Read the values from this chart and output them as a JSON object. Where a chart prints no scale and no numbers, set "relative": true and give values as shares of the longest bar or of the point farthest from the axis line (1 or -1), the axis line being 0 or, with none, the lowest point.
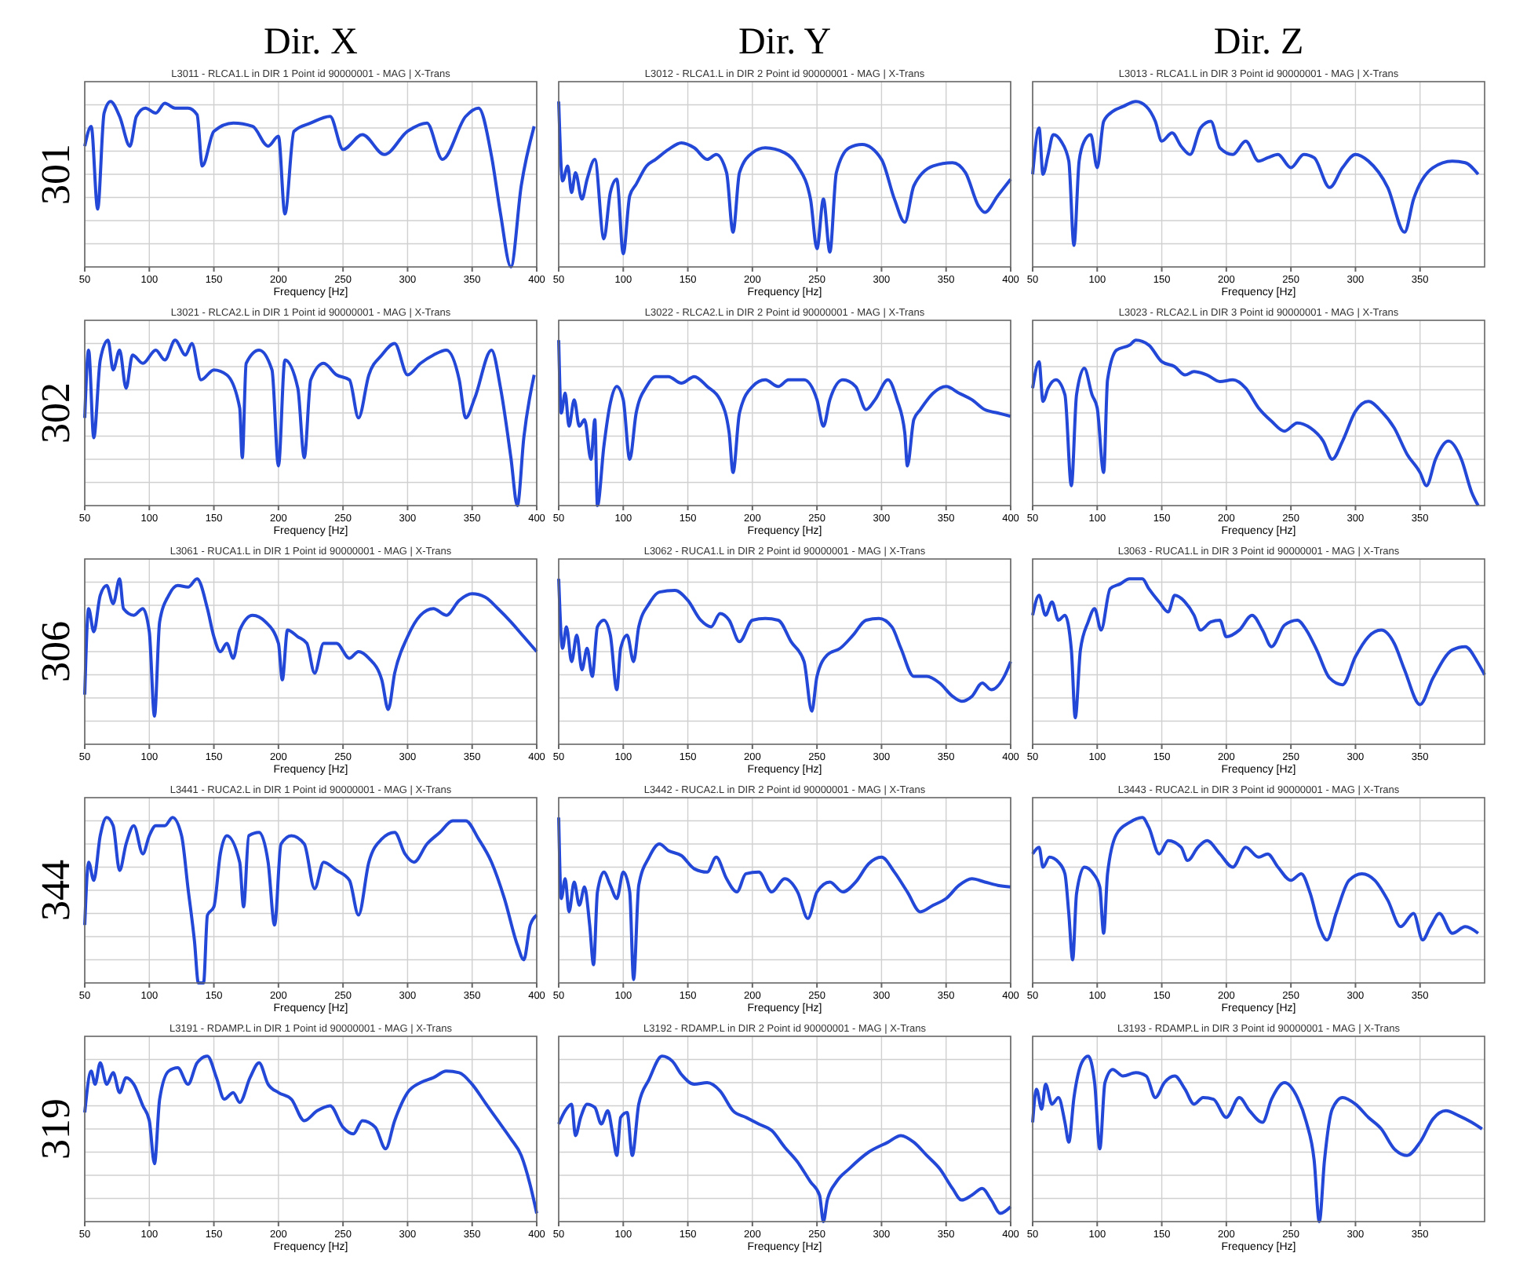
{
  "chart_data": [
    {
      "type": "line",
      "title": "L3011 - RLCA1.L in DIR 1 Point id 90000001 - MAG | X-Trans",
      "xlabel": "Frequency [Hz]",
      "annotations": [
        "Dir. X",
        "301"
      ],
      "relative": true,
      "grid": true,
      "marker": "none",
      "line_style": "solid",
      "xlim": [
        50,
        400
      ],
      "xticks": [
        50,
        100,
        150,
        200,
        250,
        300,
        350,
        400
      ],
      "color": "#2347d6",
      "x": [
        50,
        55,
        60,
        65,
        70,
        77,
        85,
        90,
        97,
        105,
        112,
        120,
        130,
        137,
        141,
        150,
        165,
        180,
        192,
        200,
        205,
        212,
        225,
        240,
        250,
        265,
        282,
        300,
        315,
        327,
        345,
        355,
        365,
        372,
        380,
        388,
        398
      ],
      "values": [
        0.73,
        0.85,
        0.35,
        0.93,
        1,
        0.91,
        0.73,
        0.91,
        0.96,
        0.93,
        0.99,
        0.96,
        0.96,
        0.92,
        0.61,
        0.82,
        0.87,
        0.85,
        0.73,
        0.79,
        0.32,
        0.82,
        0.87,
        0.91,
        0.71,
        0.8,
        0.68,
        0.82,
        0.87,
        0.65,
        0.91,
        0.96,
        0.67,
        0.32,
        0,
        0.49,
        0.85
      ]
    },
    {
      "type": "line",
      "title": "L3012 - RLCA1.L in DIR 2 Point id 90000001 - MAG | X-Trans",
      "xlabel": "Frequency [Hz]",
      "annotations": [
        "Dir. Y"
      ],
      "relative": true,
      "grid": true,
      "marker": "none",
      "line_style": "solid",
      "xlim": [
        50,
        400
      ],
      "xticks": [
        50,
        100,
        150,
        200,
        250,
        300,
        350,
        400
      ],
      "color": "#2347d6",
      "x": [
        50,
        53,
        57,
        60,
        63,
        68,
        72,
        78,
        85,
        90,
        95,
        100,
        105,
        110,
        118,
        125,
        135,
        145,
        155,
        165,
        172,
        180,
        185,
        190,
        200,
        210,
        225,
        235,
        245,
        250,
        255,
        260,
        265,
        275,
        285,
        300,
        310,
        318,
        325,
        340,
        355,
        365,
        375,
        380,
        390,
        400
      ],
      "values": [
        1,
        0.52,
        0.61,
        0.45,
        0.57,
        0.41,
        0.53,
        0.65,
        0.17,
        0.45,
        0.53,
        0.08,
        0.43,
        0.5,
        0.61,
        0.65,
        0.71,
        0.75,
        0.72,
        0.65,
        0.68,
        0.57,
        0.21,
        0.57,
        0.69,
        0.72,
        0.69,
        0.61,
        0.41,
        0.11,
        0.41,
        0.09,
        0.57,
        0.72,
        0.74,
        0.65,
        0.41,
        0.27,
        0.49,
        0.61,
        0.63,
        0.57,
        0.37,
        0.33,
        0.43,
        0.53
      ]
    },
    {
      "type": "line",
      "title": "L3013 - RLCA1.L in DIR 3 Point id 90000001 - MAG | X-Trans",
      "xlabel": "Frequency [Hz]",
      "annotations": [
        "Dir. Z"
      ],
      "relative": true,
      "grid": true,
      "marker": "none",
      "line_style": "solid",
      "xlim": [
        50,
        400
      ],
      "xticks": [
        50,
        100,
        150,
        200,
        250,
        300,
        350
      ],
      "color": "#2347d6",
      "x": [
        50,
        55,
        58,
        62,
        66,
        72,
        78,
        82,
        86,
        90,
        95,
        100,
        105,
        112,
        120,
        130,
        138,
        145,
        150,
        158,
        165,
        172,
        180,
        188,
        195,
        205,
        215,
        225,
        232,
        240,
        250,
        260,
        268,
        280,
        290,
        300,
        310,
        325,
        338,
        345,
        360,
        375,
        385,
        395
      ],
      "values": [
        0.56,
        0.84,
        0.56,
        0.68,
        0.8,
        0.76,
        0.64,
        0.13,
        0.64,
        0.76,
        0.8,
        0.6,
        0.88,
        0.94,
        0.97,
        1,
        0.97,
        0.88,
        0.76,
        0.81,
        0.73,
        0.68,
        0.84,
        0.88,
        0.72,
        0.68,
        0.76,
        0.64,
        0.66,
        0.68,
        0.6,
        0.68,
        0.66,
        0.48,
        0.6,
        0.68,
        0.64,
        0.48,
        0.21,
        0.41,
        0.6,
        0.64,
        0.63,
        0.56
      ]
    },
    {
      "type": "line",
      "title": "L3021 - RLCA2.L in DIR 1 Point id 90000001 - MAG | X-Trans",
      "xlabel": "Frequency [Hz]",
      "annotations": [
        "302"
      ],
      "relative": true,
      "grid": true,
      "marker": "none",
      "line_style": "solid",
      "xlim": [
        50,
        400
      ],
      "xticks": [
        50,
        100,
        150,
        200,
        250,
        300,
        350,
        400
      ],
      "color": "#2347d6",
      "x": [
        50,
        53,
        57,
        62,
        68,
        72,
        77,
        82,
        87,
        95,
        105,
        112,
        120,
        128,
        133,
        140,
        150,
        160,
        170,
        172,
        175,
        185,
        195,
        200,
        205,
        215,
        220,
        225,
        235,
        245,
        255,
        262,
        270,
        280,
        290,
        300,
        310,
        320,
        330,
        340,
        345,
        352,
        365,
        372,
        380,
        385,
        390,
        398
      ],
      "values": [
        0.53,
        0.94,
        0.41,
        0.88,
        1,
        0.82,
        0.94,
        0.71,
        0.91,
        0.86,
        0.94,
        0.88,
        1,
        0.91,
        0.98,
        0.76,
        0.82,
        0.79,
        0.59,
        0.29,
        0.86,
        0.94,
        0.82,
        0.24,
        0.88,
        0.71,
        0.29,
        0.76,
        0.86,
        0.79,
        0.76,
        0.53,
        0.79,
        0.91,
        0.98,
        0.79,
        0.86,
        0.91,
        0.94,
        0.76,
        0.53,
        0.65,
        0.94,
        0.71,
        0.29,
        0,
        0.41,
        0.79
      ]
    },
    {
      "type": "line",
      "title": "L3022 - RLCA2.L in DIR 2 Point id 90000001 - MAG | X-Trans",
      "xlabel": "Frequency [Hz]",
      "relative": true,
      "grid": true,
      "marker": "none",
      "line_style": "solid",
      "xlim": [
        50,
        400
      ],
      "xticks": [
        50,
        100,
        150,
        200,
        250,
        300,
        350,
        400
      ],
      "color": "#2347d6",
      "x": [
        50,
        52,
        55,
        58,
        62,
        66,
        70,
        75,
        78,
        80,
        85,
        90,
        95,
        100,
        105,
        110,
        118,
        125,
        135,
        145,
        155,
        165,
        175,
        182,
        185,
        190,
        200,
        210,
        220,
        228,
        240,
        250,
        255,
        260,
        270,
        280,
        288,
        295,
        305,
        312,
        318,
        320,
        325,
        330,
        340,
        350,
        360,
        370,
        380,
        390,
        400
      ],
      "values": [
        1,
        0.56,
        0.68,
        0.48,
        0.64,
        0.48,
        0.52,
        0.28,
        0.52,
        0,
        0.36,
        0.62,
        0.72,
        0.64,
        0.28,
        0.56,
        0.72,
        0.78,
        0.78,
        0.74,
        0.78,
        0.72,
        0.64,
        0.44,
        0.2,
        0.56,
        0.72,
        0.76,
        0.72,
        0.76,
        0.76,
        0.64,
        0.48,
        0.64,
        0.76,
        0.72,
        0.58,
        0.64,
        0.76,
        0.64,
        0.44,
        0.24,
        0.52,
        0.58,
        0.68,
        0.72,
        0.68,
        0.64,
        0.58,
        0.56,
        0.54
      ]
    },
    {
      "type": "line",
      "title": "L3023 - RLCA2.L in DIR 3 Point id 90000001 - MAG | X-Trans",
      "xlabel": "Frequency [Hz]",
      "relative": true,
      "grid": true,
      "marker": "none",
      "line_style": "solid",
      "xlim": [
        50,
        400
      ],
      "xticks": [
        50,
        100,
        150,
        200,
        250,
        300,
        350
      ],
      "color": "#2347d6",
      "x": [
        50,
        55,
        58,
        62,
        68,
        75,
        80,
        84,
        90,
        96,
        100,
        105,
        108,
        115,
        125,
        130,
        140,
        150,
        160,
        168,
        175,
        185,
        195,
        205,
        215,
        225,
        235,
        245,
        255,
        265,
        275,
        282,
        290,
        300,
        310,
        320,
        330,
        340,
        350,
        355,
        362,
        372,
        382,
        390,
        395
      ],
      "values": [
        0.71,
        0.87,
        0.63,
        0.71,
        0.76,
        0.67,
        0.12,
        0.67,
        0.83,
        0.67,
        0.59,
        0.2,
        0.76,
        0.94,
        0.97,
        1,
        0.97,
        0.87,
        0.84,
        0.79,
        0.81,
        0.79,
        0.75,
        0.76,
        0.71,
        0.59,
        0.51,
        0.45,
        0.5,
        0.47,
        0.39,
        0.28,
        0.39,
        0.57,
        0.63,
        0.57,
        0.47,
        0.31,
        0.2,
        0.12,
        0.28,
        0.39,
        0.28,
        0.08,
        0
      ]
    },
    {
      "type": "line",
      "title": "L3061 - RUCA1.L in DIR 1 Point id 90000001 - MAG | X-Trans",
      "xlabel": "Frequency [Hz]",
      "annotations": [
        "306"
      ],
      "relative": true,
      "grid": true,
      "marker": "none",
      "line_style": "solid",
      "xlim": [
        50,
        400
      ],
      "xticks": [
        50,
        100,
        150,
        200,
        250,
        300,
        350,
        400
      ],
      "color": "#2347d6",
      "x": [
        50,
        53,
        57,
        62,
        67,
        72,
        77,
        80,
        88,
        95,
        100,
        104,
        108,
        115,
        122,
        130,
        137,
        145,
        150,
        155,
        160,
        165,
        170,
        180,
        190,
        200,
        203,
        207,
        215,
        222,
        228,
        235,
        245,
        255,
        262,
        270,
        280,
        285,
        290,
        300,
        310,
        320,
        330,
        340,
        350,
        360,
        370,
        380,
        390,
        400
      ],
      "values": [
        0.3,
        0.82,
        0.68,
        0.9,
        0.96,
        0.85,
        1,
        0.82,
        0.78,
        0.82,
        0.68,
        0.17,
        0.74,
        0.9,
        0.96,
        0.95,
        1,
        0.82,
        0.65,
        0.56,
        0.61,
        0.52,
        0.69,
        0.78,
        0.74,
        0.61,
        0.39,
        0.69,
        0.65,
        0.61,
        0.43,
        0.61,
        0.61,
        0.52,
        0.56,
        0.52,
        0.39,
        0.21,
        0.43,
        0.65,
        0.78,
        0.82,
        0.78,
        0.87,
        0.91,
        0.89,
        0.82,
        0.74,
        0.65,
        0.56
      ]
    },
    {
      "type": "line",
      "title": "L3062 - RUCA1.L in DIR 2 Point id 90000001 - MAG | X-Trans",
      "xlabel": "Frequency [Hz]",
      "relative": true,
      "grid": true,
      "marker": "none",
      "line_style": "solid",
      "xlim": [
        50,
        400
      ],
      "xticks": [
        50,
        100,
        150,
        200,
        250,
        300,
        350,
        400
      ],
      "color": "#2347d6",
      "x": [
        50,
        53,
        56,
        60,
        64,
        68,
        72,
        76,
        80,
        85,
        90,
        95,
        98,
        103,
        108,
        112,
        120,
        128,
        140,
        150,
        160,
        168,
        175,
        182,
        190,
        200,
        210,
        220,
        230,
        240,
        246,
        250,
        258,
        268,
        278,
        288,
        298,
        308,
        315,
        325,
        335,
        345,
        355,
        362,
        370,
        378,
        385,
        395,
        400
      ],
      "values": [
        1,
        0.58,
        0.71,
        0.5,
        0.66,
        0.45,
        0.58,
        0.41,
        0.71,
        0.75,
        0.66,
        0.33,
        0.58,
        0.66,
        0.5,
        0.71,
        0.85,
        0.92,
        0.93,
        0.87,
        0.75,
        0.71,
        0.79,
        0.75,
        0.62,
        0.75,
        0.76,
        0.75,
        0.62,
        0.5,
        0.2,
        0.41,
        0.54,
        0.58,
        0.66,
        0.75,
        0.76,
        0.71,
        0.58,
        0.41,
        0.41,
        0.37,
        0.29,
        0.26,
        0.29,
        0.37,
        0.33,
        0.41,
        0.5
      ]
    },
    {
      "type": "line",
      "title": "L3063 - RUCA1.L in DIR 3 Point id 90000001 - MAG | X-Trans",
      "xlabel": "Frequency [Hz]",
      "relative": true,
      "grid": true,
      "marker": "none",
      "line_style": "solid",
      "xlim": [
        50,
        400
      ],
      "xticks": [
        50,
        100,
        150,
        200,
        250,
        300,
        350
      ],
      "color": "#2347d6",
      "x": [
        50,
        55,
        60,
        65,
        70,
        75,
        80,
        83,
        87,
        93,
        98,
        103,
        110,
        118,
        125,
        135,
        140,
        148,
        155,
        160,
        168,
        175,
        180,
        188,
        195,
        200,
        210,
        220,
        228,
        235,
        245,
        255,
        262,
        270,
        280,
        290,
        300,
        310,
        320,
        330,
        338,
        350,
        360,
        375,
        385,
        395,
        400
      ],
      "values": [
        0.78,
        0.9,
        0.78,
        0.86,
        0.75,
        0.78,
        0.57,
        0.16,
        0.57,
        0.74,
        0.82,
        0.69,
        0.94,
        0.97,
        1,
        1,
        0.94,
        0.86,
        0.8,
        0.9,
        0.86,
        0.78,
        0.69,
        0.74,
        0.75,
        0.65,
        0.69,
        0.78,
        0.69,
        0.59,
        0.72,
        0.75,
        0.69,
        0.57,
        0.4,
        0.36,
        0.53,
        0.65,
        0.69,
        0.61,
        0.45,
        0.24,
        0.4,
        0.57,
        0.59,
        0.49,
        0.42
      ]
    },
    {
      "type": "line",
      "title": "L3441 - RUCA2.L in DIR 1 Point id 90000001 - MAG | X-Trans",
      "xlabel": "Frequency [Hz]",
      "annotations": [
        "344"
      ],
      "relative": true,
      "grid": true,
      "marker": "none",
      "line_style": "solid",
      "xlim": [
        50,
        400
      ],
      "xticks": [
        50,
        100,
        150,
        200,
        250,
        300,
        350,
        400
      ],
      "color": "#2347d6",
      "x": [
        50,
        53,
        57,
        62,
        67,
        72,
        77,
        82,
        88,
        95,
        100,
        105,
        112,
        118,
        125,
        130,
        135,
        138,
        142,
        145,
        150,
        155,
        160,
        170,
        173,
        177,
        185,
        192,
        197,
        202,
        210,
        220,
        228,
        235,
        245,
        255,
        262,
        270,
        280,
        290,
        298,
        305,
        315,
        325,
        335,
        345,
        355,
        365,
        375,
        385,
        390,
        395,
        400
      ],
      "values": [
        0.35,
        0.73,
        0.62,
        0.89,
        1,
        0.95,
        0.68,
        0.84,
        0.95,
        0.78,
        0.89,
        0.95,
        0.95,
        1,
        0.89,
        0.57,
        0.25,
        0,
        0,
        0.41,
        0.46,
        0.78,
        0.89,
        0.73,
        0.46,
        0.89,
        0.91,
        0.73,
        0.35,
        0.84,
        0.89,
        0.84,
        0.57,
        0.73,
        0.68,
        0.62,
        0.41,
        0.73,
        0.87,
        0.91,
        0.78,
        0.73,
        0.84,
        0.91,
        0.98,
        0.98,
        0.87,
        0.73,
        0.51,
        0.23,
        0.14,
        0.35,
        0.41
      ]
    },
    {
      "type": "line",
      "title": "L3442 - RUCA2.L in DIR 2 Point id 90000001 - MAG | X-Trans",
      "xlabel": "Frequency [Hz]",
      "relative": true,
      "grid": true,
      "marker": "none",
      "line_style": "solid",
      "xlim": [
        50,
        400
      ],
      "xticks": [
        50,
        100,
        150,
        200,
        250,
        300,
        350,
        400
      ],
      "color": "#2347d6",
      "x": [
        50,
        52,
        55,
        58,
        62,
        66,
        70,
        74,
        77,
        80,
        85,
        90,
        95,
        100,
        105,
        108,
        112,
        120,
        128,
        135,
        145,
        155,
        165,
        172,
        180,
        188,
        195,
        205,
        215,
        225,
        235,
        243,
        250,
        260,
        270,
        280,
        290,
        300,
        310,
        320,
        330,
        340,
        350,
        360,
        370,
        380,
        390,
        400
      ],
      "values": [
        1,
        0.51,
        0.63,
        0.43,
        0.61,
        0.47,
        0.58,
        0.35,
        0.11,
        0.55,
        0.67,
        0.59,
        0.51,
        0.67,
        0.55,
        0.02,
        0.59,
        0.76,
        0.84,
        0.8,
        0.77,
        0.69,
        0.67,
        0.76,
        0.63,
        0.55,
        0.66,
        0.67,
        0.55,
        0.63,
        0.55,
        0.39,
        0.55,
        0.61,
        0.55,
        0.61,
        0.72,
        0.76,
        0.67,
        0.55,
        0.43,
        0.47,
        0.51,
        0.59,
        0.63,
        0.61,
        0.59,
        0.58
      ]
    },
    {
      "type": "line",
      "title": "L3443 - RUCA2.L in DIR 3 Point id 90000001 - MAG | X-Trans",
      "xlabel": "Frequency [Hz]",
      "relative": true,
      "grid": true,
      "marker": "none",
      "line_style": "solid",
      "xlim": [
        50,
        400
      ],
      "xticks": [
        50,
        100,
        150,
        200,
        250,
        300,
        350
      ],
      "color": "#2347d6",
      "x": [
        50,
        55,
        58,
        63,
        70,
        75,
        78,
        81,
        84,
        90,
        97,
        102,
        105,
        108,
        115,
        125,
        135,
        140,
        148,
        155,
        165,
        170,
        178,
        185,
        195,
        205,
        215,
        225,
        232,
        240,
        250,
        258,
        265,
        272,
        278,
        285,
        295,
        305,
        315,
        325,
        335,
        345,
        352,
        358,
        365,
        375,
        385,
        395
      ],
      "values": [
        0.78,
        0.82,
        0.7,
        0.76,
        0.73,
        0.66,
        0.42,
        0.14,
        0.54,
        0.7,
        0.66,
        0.58,
        0.3,
        0.66,
        0.9,
        0.97,
        1,
        0.94,
        0.78,
        0.86,
        0.82,
        0.74,
        0.82,
        0.86,
        0.78,
        0.7,
        0.82,
        0.76,
        0.78,
        0.7,
        0.62,
        0.66,
        0.54,
        0.34,
        0.26,
        0.42,
        0.62,
        0.66,
        0.62,
        0.5,
        0.34,
        0.42,
        0.26,
        0.34,
        0.42,
        0.3,
        0.34,
        0.3
      ]
    },
    {
      "type": "line",
      "title": "L3191 - RDAMP.L in DIR 1 Point id 90000001 - MAG | X-Trans",
      "xlabel": "Frequency [Hz]",
      "annotations": [
        "319"
      ],
      "relative": true,
      "grid": true,
      "marker": "none",
      "line_style": "solid",
      "xlim": [
        50,
        400
      ],
      "xticks": [
        50,
        100,
        150,
        200,
        250,
        300,
        350,
        400
      ],
      "color": "#2347d6",
      "x": [
        50,
        55,
        58,
        62,
        67,
        72,
        77,
        82,
        88,
        95,
        100,
        104,
        108,
        115,
        122,
        130,
        137,
        145,
        152,
        158,
        165,
        170,
        178,
        185,
        192,
        200,
        210,
        220,
        230,
        240,
        250,
        258,
        265,
        275,
        283,
        290,
        300,
        310,
        320,
        330,
        340,
        350,
        360,
        370,
        380,
        388,
        395,
        400
      ],
      "values": [
        0.66,
        0.91,
        0.83,
        0.96,
        0.83,
        0.9,
        0.78,
        0.87,
        0.83,
        0.7,
        0.61,
        0.35,
        0.74,
        0.91,
        0.93,
        0.83,
        0.96,
        1,
        0.87,
        0.74,
        0.78,
        0.72,
        0.87,
        0.96,
        0.83,
        0.78,
        0.74,
        0.61,
        0.67,
        0.7,
        0.57,
        0.53,
        0.61,
        0.57,
        0.44,
        0.61,
        0.78,
        0.84,
        0.87,
        0.91,
        0.9,
        0.83,
        0.72,
        0.61,
        0.5,
        0.4,
        0.22,
        0.05
      ]
    },
    {
      "type": "line",
      "title": "L3192 - RDAMP.L in DIR 2 Point id 90000001 - MAG | X-Trans",
      "xlabel": "Frequency [Hz]",
      "relative": true,
      "grid": true,
      "marker": "none",
      "line_style": "solid",
      "xlim": [
        50,
        400
      ],
      "xticks": [
        50,
        100,
        150,
        200,
        250,
        300,
        350,
        400
      ],
      "color": "#2347d6",
      "x": [
        50,
        55,
        60,
        63,
        67,
        72,
        78,
        83,
        88,
        92,
        95,
        98,
        103,
        107,
        112,
        120,
        130,
        138,
        145,
        155,
        165,
        175,
        185,
        195,
        205,
        215,
        225,
        235,
        245,
        252,
        255,
        258,
        265,
        275,
        290,
        305,
        315,
        325,
        335,
        345,
        355,
        362,
        370,
        378,
        385,
        392,
        400
      ],
      "values": [
        0.59,
        0.67,
        0.71,
        0.52,
        0.63,
        0.71,
        0.69,
        0.59,
        0.67,
        0.52,
        0.4,
        0.63,
        0.66,
        0.4,
        0.71,
        0.86,
        1,
        0.97,
        0.89,
        0.83,
        0.84,
        0.79,
        0.67,
        0.63,
        0.59,
        0.55,
        0.45,
        0.36,
        0.24,
        0.16,
        0,
        0.13,
        0.24,
        0.32,
        0.42,
        0.48,
        0.52,
        0.48,
        0.4,
        0.32,
        0.2,
        0.13,
        0.16,
        0.2,
        0.13,
        0.05,
        0.09
      ]
    },
    {
      "type": "line",
      "title": "L3193 - RDAMP.L in DIR 3 Point id 90000001 - MAG | X-Trans",
      "xlabel": "Frequency [Hz]",
      "relative": true,
      "grid": true,
      "marker": "none",
      "line_style": "solid",
      "xlim": [
        50,
        400
      ],
      "xticks": [
        50,
        100,
        150,
        200,
        250,
        300,
        350
      ],
      "color": "#2347d6",
      "x": [
        50,
        53,
        57,
        60,
        65,
        70,
        75,
        78,
        82,
        88,
        93,
        98,
        102,
        106,
        112,
        120,
        130,
        138,
        145,
        152,
        160,
        168,
        175,
        182,
        190,
        200,
        210,
        218,
        228,
        235,
        245,
        255,
        262,
        268,
        272,
        276,
        282,
        290,
        300,
        310,
        320,
        330,
        340,
        350,
        360,
        370,
        380,
        390,
        398
      ],
      "values": [
        0.6,
        0.8,
        0.68,
        0.83,
        0.71,
        0.75,
        0.6,
        0.48,
        0.75,
        0.96,
        1,
        0.84,
        0.44,
        0.84,
        0.92,
        0.88,
        0.9,
        0.88,
        0.75,
        0.84,
        0.88,
        0.8,
        0.71,
        0.75,
        0.74,
        0.63,
        0.75,
        0.67,
        0.6,
        0.74,
        0.84,
        0.75,
        0.6,
        0.37,
        0,
        0.37,
        0.68,
        0.75,
        0.71,
        0.63,
        0.56,
        0.44,
        0.4,
        0.48,
        0.62,
        0.67,
        0.64,
        0.6,
        0.56
      ]
    }
  ]
}
